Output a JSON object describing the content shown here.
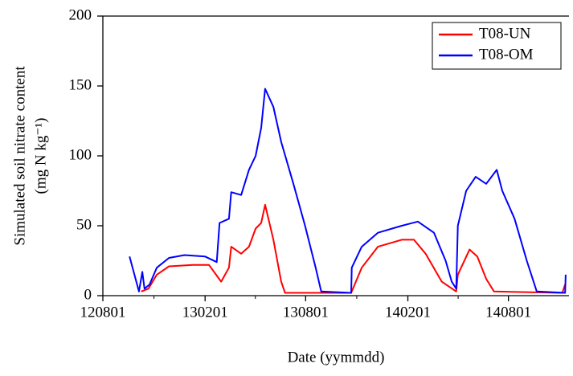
{
  "chart_data": {
    "type": "line",
    "x_label": "Date (yymmdd)",
    "y_label": [
      "Simulated soil nitrate content",
      "(mg N kg⁻¹)"
    ],
    "xlim": [
      "120801",
      "141118"
    ],
    "xticks": [
      "120801",
      "130201",
      "130801",
      "140201",
      "140801"
    ],
    "ylim": [
      0,
      200
    ],
    "yticks": [
      0,
      50,
      100,
      150,
      200
    ],
    "legend": "top-right",
    "series": [
      {
        "name": "T08-UN",
        "color": "#ff0000",
        "x": [
          "121009",
          "121022",
          "121106",
          "121128",
          "130110",
          "130208",
          "130302",
          "130316",
          "130320",
          "130407",
          "130421",
          "130503",
          "130513",
          "130520",
          "130604",
          "130618",
          "130625",
          "130829",
          "131022",
          "131110",
          "131209",
          "140121",
          "140212",
          "140305",
          "140403",
          "140429",
          "140502",
          "140523",
          "140606",
          "140622",
          "140706",
          "141106",
          "141111"
        ],
        "values": [
          3,
          5,
          15,
          21,
          22,
          22,
          10,
          20,
          35,
          30,
          35,
          48,
          52,
          65,
          40,
          10,
          2,
          2,
          2,
          20,
          35,
          40,
          40,
          30,
          10,
          3,
          15,
          33,
          28,
          12,
          3,
          2,
          8
        ]
      },
      {
        "name": "T08-OM",
        "color": "#0000ff",
        "x": [
          "120918",
          "121005",
          "121011",
          "121015",
          "121024",
          "121106",
          "121128",
          "121226",
          "130201",
          "130222",
          "130227",
          "130316",
          "130320",
          "130407",
          "130421",
          "130503",
          "130513",
          "130520",
          "130604",
          "130618",
          "130710",
          "130731",
          "130819",
          "130829",
          "131022",
          "131023",
          "131110",
          "131209",
          "140121",
          "140219",
          "140320",
          "140410",
          "140421",
          "140429",
          "140502",
          "140517",
          "140603",
          "140622",
          "140711",
          "140721",
          "140812",
          "140903",
          "140921",
          "141111",
          "141112"
        ],
        "values": [
          28,
          3,
          17,
          5,
          8,
          20,
          27,
          29,
          28,
          24,
          52,
          55,
          74,
          72,
          90,
          100,
          120,
          148,
          135,
          110,
          80,
          50,
          20,
          3,
          2,
          20,
          35,
          45,
          50,
          53,
          45,
          25,
          10,
          5,
          50,
          75,
          85,
          80,
          90,
          75,
          55,
          25,
          3,
          2,
          15
        ]
      }
    ]
  }
}
